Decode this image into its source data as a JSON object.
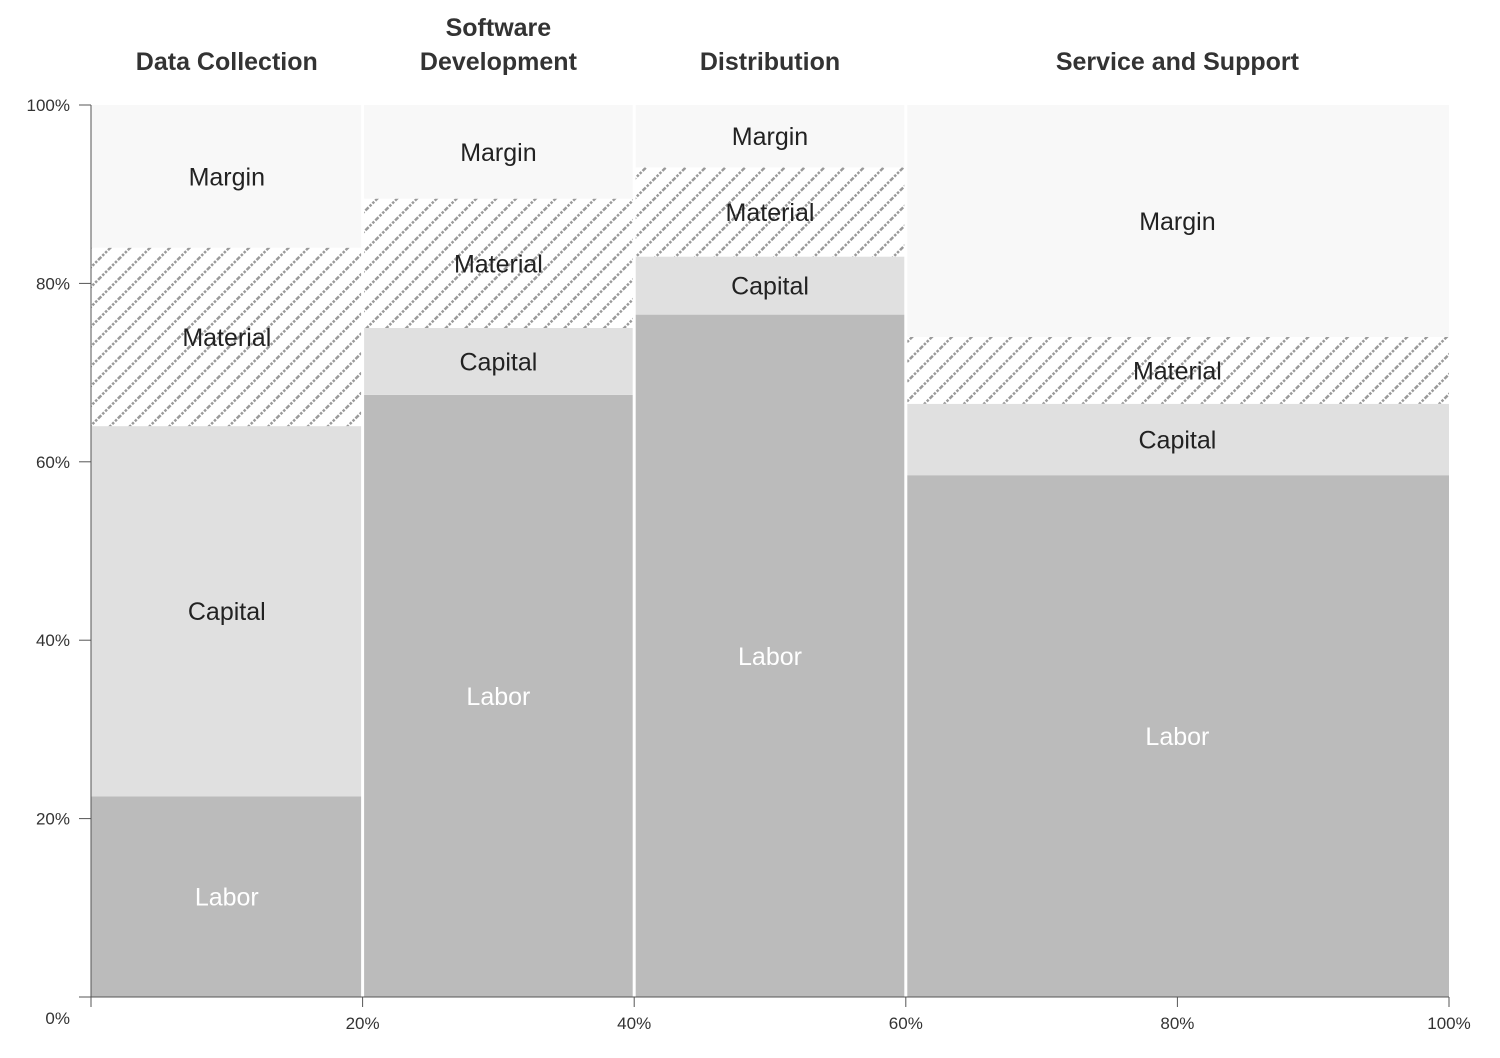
{
  "chart_data": {
    "type": "mekko",
    "title": "",
    "xlabel": "",
    "ylabel": "",
    "xlim": [
      0,
      100
    ],
    "ylim": [
      0,
      100
    ],
    "grid": false,
    "legend": "none",
    "x_ticks": [
      "20%",
      "40%",
      "60%",
      "80%",
      "100%"
    ],
    "x_ticks_values": [
      20,
      40,
      60,
      80,
      100
    ],
    "y_ticks": [
      "0%",
      "20%",
      "40%",
      "60%",
      "80%",
      "100%"
    ],
    "y_ticks_values": [
      0,
      20,
      40,
      60,
      80,
      100
    ],
    "segment_order": [
      "Labor",
      "Capital",
      "Material",
      "Margin"
    ],
    "colors": {
      "Labor": "#bbbbbb",
      "Capital": "#e0e0e0",
      "Material": "hatch",
      "Margin": "#f8f8f8",
      "Labor_text": "#ffffff",
      "other_text": "#222222"
    },
    "categories": [
      {
        "name": "Data Collection",
        "name_lines": [
          "Data Collection"
        ],
        "x_start": 0,
        "x_end": 20,
        "segments": [
          {
            "label": "Labor",
            "value": 22.5
          },
          {
            "label": "Capital",
            "value": 41.5
          },
          {
            "label": "Material",
            "value": 20
          },
          {
            "label": "Margin",
            "value": 16
          }
        ]
      },
      {
        "name": "Software Development",
        "name_lines": [
          "Software",
          "Development"
        ],
        "x_start": 20,
        "x_end": 40,
        "segments": [
          {
            "label": "Labor",
            "value": 67.5
          },
          {
            "label": "Capital",
            "value": 7.5
          },
          {
            "label": "Material",
            "value": 14.5
          },
          {
            "label": "Margin",
            "value": 10.5
          }
        ]
      },
      {
        "name": "Distribution",
        "name_lines": [
          "Distribution"
        ],
        "x_start": 40,
        "x_end": 60,
        "segments": [
          {
            "label": "Labor",
            "value": 76.5
          },
          {
            "label": "Capital",
            "value": 6.5
          },
          {
            "label": "Material",
            "value": 10
          },
          {
            "label": "Margin",
            "value": 7
          }
        ]
      },
      {
        "name": "Service and Support",
        "name_lines": [
          "Service and Support"
        ],
        "x_start": 60,
        "x_end": 100,
        "segments": [
          {
            "label": "Labor",
            "value": 58.5
          },
          {
            "label": "Capital",
            "value": 8
          },
          {
            "label": "Material",
            "value": 7.5
          },
          {
            "label": "Margin",
            "value": 26
          }
        ]
      }
    ]
  }
}
